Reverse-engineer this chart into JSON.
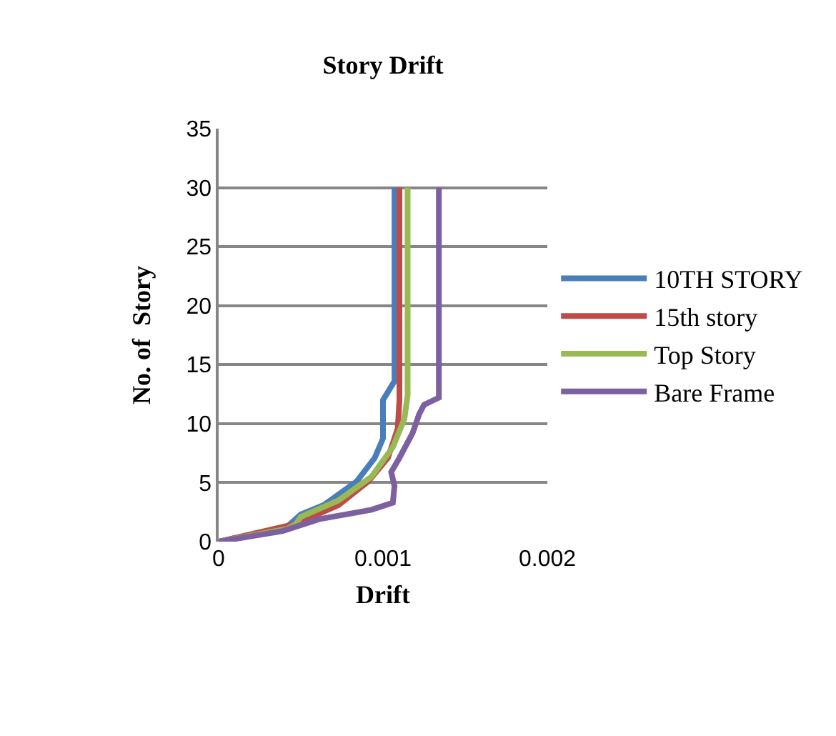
{
  "chart_data": {
    "type": "line",
    "title": "Story Drift",
    "xlabel": "Drift",
    "ylabel": "No. of  Story",
    "xlim": [
      0,
      0.002
    ],
    "xticks": [
      0,
      0.001,
      0.002
    ],
    "ylim": [
      0,
      35
    ],
    "yticks": [
      0,
      5,
      10,
      15,
      20,
      25,
      30,
      35
    ],
    "grid": "y",
    "legend": "right",
    "marker": "none",
    "line_style": "solid",
    "series": [
      {
        "name": "10TH STORY",
        "color": "#4a7ebb",
        "x": [
          0,
          0.00042,
          0.0005,
          0.00064,
          0.00084,
          0.00095,
          0.001,
          0.001,
          0.00107,
          0.00107
        ],
        "values": [
          0,
          1.3,
          2.3,
          3.1,
          5.1,
          7.1,
          8.75,
          12,
          13.6,
          30
        ]
      },
      {
        "name": "15th story",
        "color": "#be4b48",
        "x": [
          0,
          0.00047,
          0.00073,
          0.00091,
          0.00103,
          0.00109,
          0.0011,
          0.0011
        ],
        "values": [
          0,
          1.5,
          3.1,
          5.1,
          7.1,
          9.6,
          12,
          30
        ]
      },
      {
        "name": "Top Story",
        "color": "#98b954",
        "x": [
          0,
          0.00042,
          0.00047,
          0.0005,
          0.00073,
          0.00093,
          0.00106,
          0.00113,
          0.00115,
          0.00115
        ],
        "values": [
          0,
          1.1,
          1.5,
          2.1,
          3.5,
          5.5,
          8,
          10.4,
          12.4,
          30
        ]
      },
      {
        "name": "Bare Frame",
        "color": "#7d60a0",
        "x": [
          0,
          0.00039,
          0.00061,
          0.00093,
          0.00106,
          0.00107,
          0.00105,
          0.0011,
          0.00118,
          0.00122,
          0.00125,
          0.00134,
          0.00134
        ],
        "values": [
          0,
          0.9,
          1.9,
          2.7,
          3.3,
          4.7,
          5.9,
          7.1,
          9.2,
          10.8,
          11.6,
          12.2,
          30
        ]
      }
    ]
  }
}
